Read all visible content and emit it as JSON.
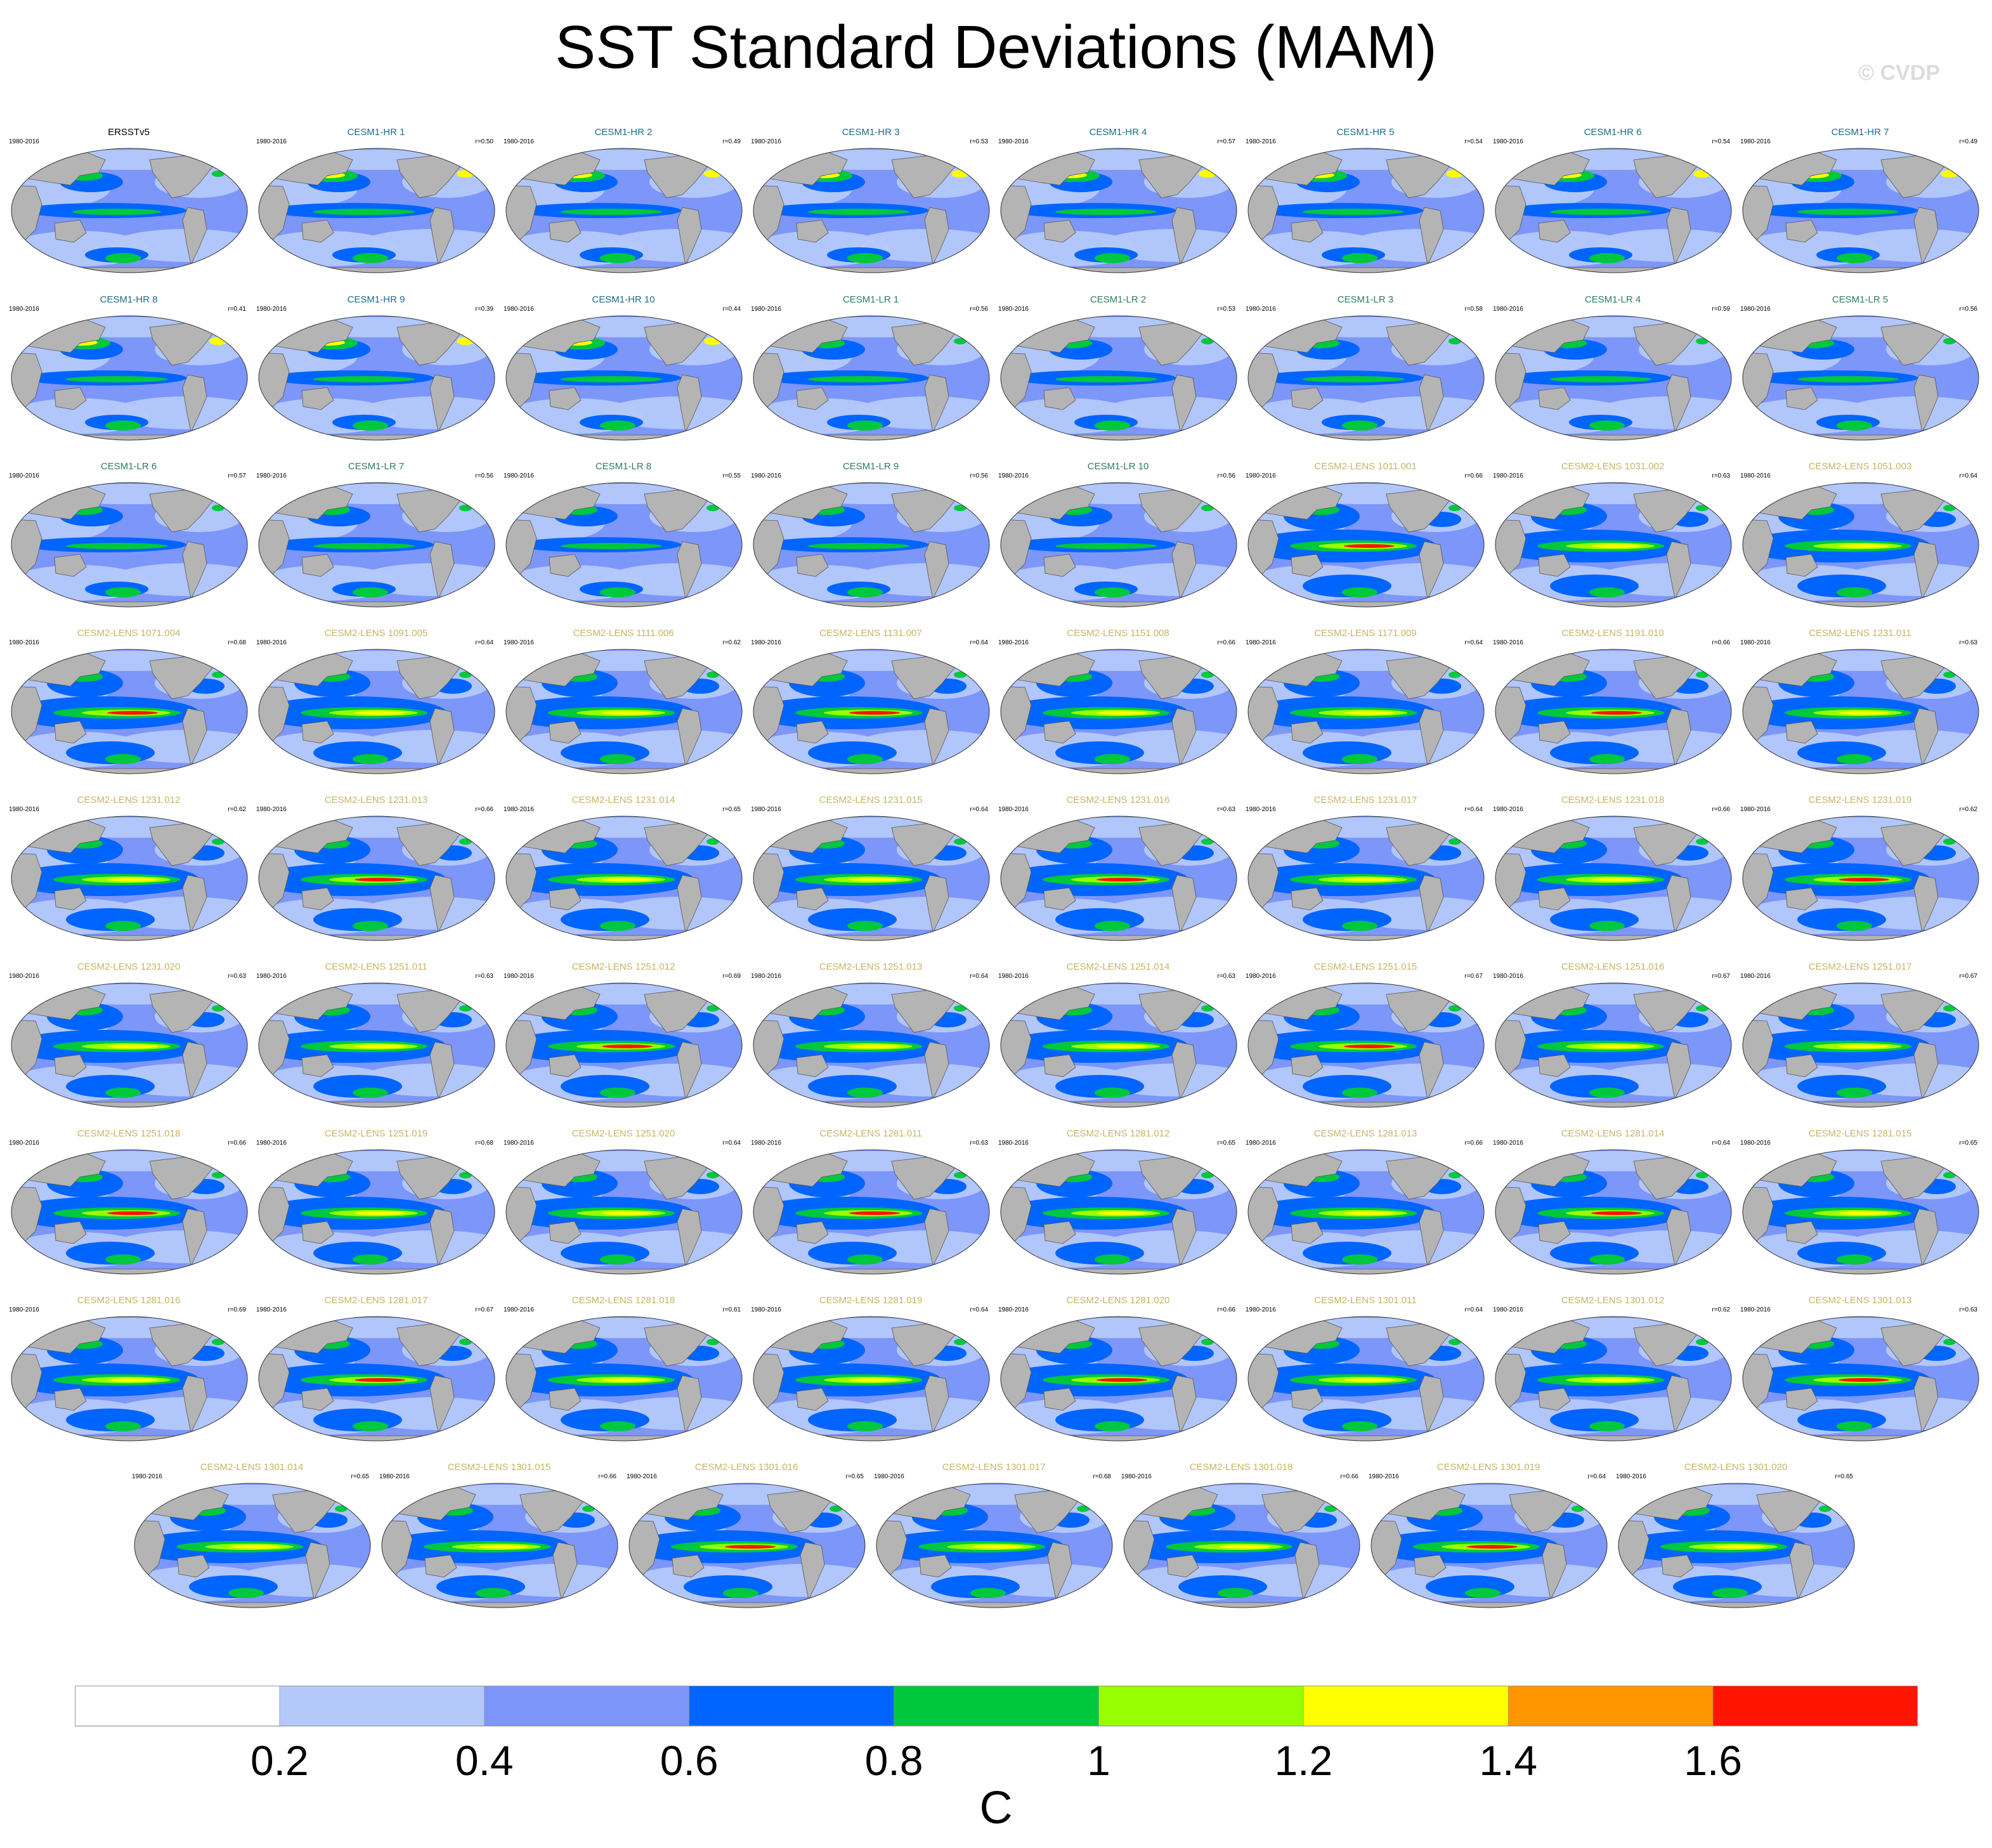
{
  "chart_data": {
    "type": "heatmap",
    "title": "SST Standard Deviations (MAM)",
    "watermark": "© CVDP",
    "period": "1980-2016",
    "units": "C",
    "colorbar": {
      "ticks": [
        "0.2",
        "0.4",
        "0.6",
        "0.8",
        "1",
        "1.2",
        "1.4",
        "1.6"
      ],
      "colors": [
        "#ffffff",
        "#b4c8fa",
        "#7d96fa",
        "#0064ff",
        "#00c83c",
        "#96ff00",
        "#ffff00",
        "#ff9600",
        "#ff1400"
      ]
    },
    "panels": [
      {
        "name": "ERSSTv5",
        "r": null,
        "group": "obs"
      },
      {
        "name": "CESM1-HR 1",
        "r": "r=0.50",
        "group": "hr"
      },
      {
        "name": "CESM1-HR 2",
        "r": "r=0.49",
        "group": "hr"
      },
      {
        "name": "CESM1-HR 3",
        "r": "r=0.53",
        "group": "hr"
      },
      {
        "name": "CESM1-HR 4",
        "r": "r=0.57",
        "group": "hr"
      },
      {
        "name": "CESM1-HR 5",
        "r": "r=0.54",
        "group": "hr"
      },
      {
        "name": "CESM1-HR 6",
        "r": "r=0.54",
        "group": "hr"
      },
      {
        "name": "CESM1-HR 7",
        "r": "r=0.49",
        "group": "hr"
      },
      {
        "name": "CESM1-HR 8",
        "r": "r=0.41",
        "group": "hr"
      },
      {
        "name": "CESM1-HR 9",
        "r": "r=0.39",
        "group": "hr"
      },
      {
        "name": "CESM1-HR 10",
        "r": "r=0.44",
        "group": "hr"
      },
      {
        "name": "CESM1-LR 1",
        "r": "r=0.56",
        "group": "lr"
      },
      {
        "name": "CESM1-LR 2",
        "r": "r=0.53",
        "group": "lr"
      },
      {
        "name": "CESM1-LR 3",
        "r": "r=0.58",
        "group": "lr"
      },
      {
        "name": "CESM1-LR 4",
        "r": "r=0.59",
        "group": "lr"
      },
      {
        "name": "CESM1-LR 5",
        "r": "r=0.56",
        "group": "lr"
      },
      {
        "name": "CESM1-LR 6",
        "r": "r=0.57",
        "group": "lr"
      },
      {
        "name": "CESM1-LR 7",
        "r": "r=0.56",
        "group": "lr"
      },
      {
        "name": "CESM1-LR 8",
        "r": "r=0.55",
        "group": "lr"
      },
      {
        "name": "CESM1-LR 9",
        "r": "r=0.56",
        "group": "lr"
      },
      {
        "name": "CESM1-LR 10",
        "r": "r=0.56",
        "group": "lr"
      },
      {
        "name": "CESM2-LENS 1011.001",
        "r": "r=0.66",
        "group": "lens"
      },
      {
        "name": "CESM2-LENS 1031.002",
        "r": "r=0.63",
        "group": "lens"
      },
      {
        "name": "CESM2-LENS 1051.003",
        "r": "r=0.64",
        "group": "lens"
      },
      {
        "name": "CESM2-LENS 1071.004",
        "r": "r=0.68",
        "group": "lens"
      },
      {
        "name": "CESM2-LENS 1091.005",
        "r": "r=0.64",
        "group": "lens"
      },
      {
        "name": "CESM2-LENS 1111.006",
        "r": "r=0.62",
        "group": "lens"
      },
      {
        "name": "CESM2-LENS 1131.007",
        "r": "r=0.64",
        "group": "lens"
      },
      {
        "name": "CESM2-LENS 1151.008",
        "r": "r=0.66",
        "group": "lens"
      },
      {
        "name": "CESM2-LENS 1171.009",
        "r": "r=0.64",
        "group": "lens"
      },
      {
        "name": "CESM2-LENS 1191.010",
        "r": "r=0.66",
        "group": "lens"
      },
      {
        "name": "CESM2-LENS 1231.011",
        "r": "r=0.63",
        "group": "lens"
      },
      {
        "name": "CESM2-LENS 1231.012",
        "r": "r=0.62",
        "group": "lens"
      },
      {
        "name": "CESM2-LENS 1231.013",
        "r": "r=0.66",
        "group": "lens"
      },
      {
        "name": "CESM2-LENS 1231.014",
        "r": "r=0.65",
        "group": "lens"
      },
      {
        "name": "CESM2-LENS 1231.015",
        "r": "r=0.64",
        "group": "lens"
      },
      {
        "name": "CESM2-LENS 1231.016",
        "r": "r=0.63",
        "group": "lens"
      },
      {
        "name": "CESM2-LENS 1231.017",
        "r": "r=0.64",
        "group": "lens"
      },
      {
        "name": "CESM2-LENS 1231.018",
        "r": "r=0.66",
        "group": "lens"
      },
      {
        "name": "CESM2-LENS 1231.019",
        "r": "r=0.62",
        "group": "lens"
      },
      {
        "name": "CESM2-LENS 1231.020",
        "r": "r=0.63",
        "group": "lens"
      },
      {
        "name": "CESM2-LENS 1251.011",
        "r": "r=0.63",
        "group": "lens"
      },
      {
        "name": "CESM2-LENS 1251.012",
        "r": "r=0.69",
        "group": "lens"
      },
      {
        "name": "CESM2-LENS 1251.013",
        "r": "r=0.64",
        "group": "lens"
      },
      {
        "name": "CESM2-LENS 1251.014",
        "r": "r=0.63",
        "group": "lens"
      },
      {
        "name": "CESM2-LENS 1251.015",
        "r": "r=0.67",
        "group": "lens"
      },
      {
        "name": "CESM2-LENS 1251.016",
        "r": "r=0.67",
        "group": "lens"
      },
      {
        "name": "CESM2-LENS 1251.017",
        "r": "r=0.67",
        "group": "lens"
      },
      {
        "name": "CESM2-LENS 1251.018",
        "r": "r=0.66",
        "group": "lens"
      },
      {
        "name": "CESM2-LENS 1251.019",
        "r": "r=0.68",
        "group": "lens"
      },
      {
        "name": "CESM2-LENS 1251.020",
        "r": "r=0.64",
        "group": "lens"
      },
      {
        "name": "CESM2-LENS 1281.011",
        "r": "r=0.63",
        "group": "lens"
      },
      {
        "name": "CESM2-LENS 1281.012",
        "r": "r=0.65",
        "group": "lens"
      },
      {
        "name": "CESM2-LENS 1281.013",
        "r": "r=0.66",
        "group": "lens"
      },
      {
        "name": "CESM2-LENS 1281.014",
        "r": "r=0.64",
        "group": "lens"
      },
      {
        "name": "CESM2-LENS 1281.015",
        "r": "r=0.65",
        "group": "lens"
      },
      {
        "name": "CESM2-LENS 1281.016",
        "r": "r=0.69",
        "group": "lens"
      },
      {
        "name": "CESM2-LENS 1281.017",
        "r": "r=0.67",
        "group": "lens"
      },
      {
        "name": "CESM2-LENS 1281.018",
        "r": "r=0.61",
        "group": "lens"
      },
      {
        "name": "CESM2-LENS 1281.019",
        "r": "r=0.64",
        "group": "lens"
      },
      {
        "name": "CESM2-LENS 1281.020",
        "r": "r=0.66",
        "group": "lens"
      },
      {
        "name": "CESM2-LENS 1301.011",
        "r": "r=0.64",
        "group": "lens"
      },
      {
        "name": "CESM2-LENS 1301.012",
        "r": "r=0.62",
        "group": "lens"
      },
      {
        "name": "CESM2-LENS 1301.013",
        "r": "r=0.63",
        "group": "lens"
      },
      {
        "name": "CESM2-LENS 1301.014",
        "r": "r=0.65",
        "group": "lens"
      },
      {
        "name": "CESM2-LENS 1301.015",
        "r": "r=0.66",
        "group": "lens"
      },
      {
        "name": "CESM2-LENS 1301.016",
        "r": "r=0.65",
        "group": "lens"
      },
      {
        "name": "CESM2-LENS 1301.017",
        "r": "r=0.68",
        "group": "lens"
      },
      {
        "name": "CESM2-LENS 1301.018",
        "r": "r=0.66",
        "group": "lens"
      },
      {
        "name": "CESM2-LENS 1301.019",
        "r": "r=0.64",
        "group": "lens"
      },
      {
        "name": "CESM2-LENS 1301.020",
        "r": "r=0.65",
        "group": "lens"
      }
    ],
    "group_title_colors": {
      "obs": "#000000",
      "hr": "#1f6b8a",
      "lr": "#2e7d5b",
      "lens": "#c8b464"
    }
  }
}
